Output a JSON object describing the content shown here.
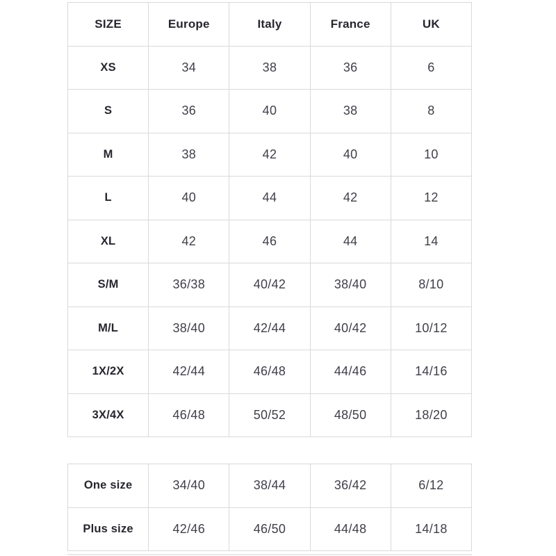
{
  "page": {
    "background": "#ffffff"
  },
  "colors": {
    "border": "#d9d9d9",
    "header_text": "#26262e",
    "value_text": "#3f3f49"
  },
  "size_chart": {
    "headers": [
      "SIZE",
      "Europe",
      "Italy",
      "France",
      "UK"
    ],
    "rows": [
      {
        "label": "XS",
        "values": [
          "34",
          "38",
          "36",
          "6"
        ]
      },
      {
        "label": "S",
        "values": [
          "36",
          "40",
          "38",
          "8"
        ]
      },
      {
        "label": "M",
        "values": [
          "38",
          "42",
          "40",
          "10"
        ]
      },
      {
        "label": "L",
        "values": [
          "40",
          "44",
          "42",
          "12"
        ]
      },
      {
        "label": "XL",
        "values": [
          "42",
          "46",
          "44",
          "14"
        ]
      },
      {
        "label": "S/M",
        "values": [
          "36/38",
          "40/42",
          "38/40",
          "8/10"
        ]
      },
      {
        "label": "M/L",
        "values": [
          "38/40",
          "42/44",
          "40/42",
          "10/12"
        ]
      },
      {
        "label": "1X/2X",
        "values": [
          "42/44",
          "46/48",
          "44/46",
          "14/16"
        ]
      },
      {
        "label": "3X/4X",
        "values": [
          "46/48",
          "50/52",
          "48/50",
          "18/20"
        ]
      }
    ]
  },
  "extra_sizes": {
    "rows": [
      {
        "label": "One size",
        "values": [
          "34/40",
          "38/44",
          "36/42",
          "6/12"
        ]
      },
      {
        "label": "Plus size",
        "values": [
          "42/46",
          "46/50",
          "44/48",
          "14/18"
        ]
      }
    ]
  }
}
